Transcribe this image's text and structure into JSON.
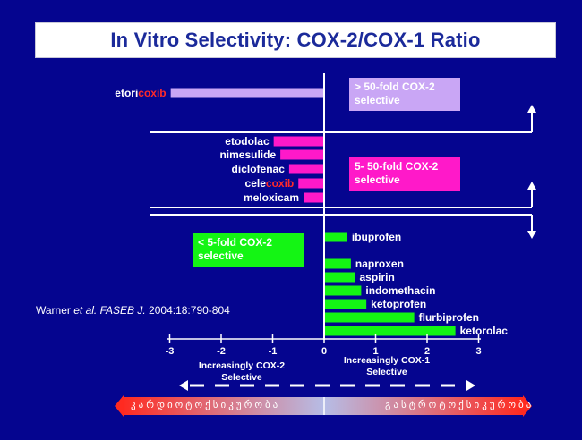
{
  "slide": {
    "title": "In Vitro Selectivity: COX-2/COX-1 Ratio",
    "citation": {
      "pre": "Warner ",
      "italic": "et al. FASEB J.",
      "post": " 2004:18:790-804"
    },
    "boxes": {
      "over50": {
        "line1": "> 50-fold COX-2",
        "line2": "selective",
        "color": "#c9a6f5"
      },
      "fold5to50": {
        "line1": "5- 50-fold COX-2",
        "line2": "selective",
        "color": "#ff19c9"
      },
      "under5": {
        "line1": "< 5-fold COX-2",
        "line2": "selective",
        "color": "#14f514"
      }
    },
    "axis_captions": {
      "left_line1": "Increasingly COX-2",
      "left_line2": "Selective",
      "right_line1": "Increasingly COX-1",
      "right_line2": "Selective"
    },
    "risk_bar": {
      "left": "კარდიოტოქსიკურობა",
      "right": "გასტროტოქსიკურობა"
    },
    "colors": {
      "background": "#05058f",
      "title": "#1b2a9a",
      "cox_highlight": "#ff2a2a",
      "arrow_red": "#ff2a20"
    }
  },
  "chart_data": {
    "type": "bar",
    "orientation": "horizontal",
    "xlim": [
      -3,
      3
    ],
    "xticks": [
      "-3",
      "-2",
      "-1",
      "0",
      "1",
      "2",
      "3"
    ],
    "series": [
      {
        "drug": "etoricoxib",
        "pre": "etori",
        "coxib": "coxib",
        "value": -2.98,
        "color": "#c9a6f5"
      },
      {
        "drug": "etodolac",
        "pre": "etodolac",
        "coxib": "",
        "value": -0.98,
        "color": "#ff19c9"
      },
      {
        "drug": "nimesulide",
        "pre": "nimesulide",
        "coxib": "",
        "value": -0.85,
        "color": "#ff19c9"
      },
      {
        "drug": "diclofenac",
        "pre": "diclofenac",
        "coxib": "",
        "value": -0.68,
        "color": "#ff19c9"
      },
      {
        "drug": "celecoxib",
        "pre": "cele",
        "coxib": "coxib",
        "value": -0.5,
        "color": "#ff19c9"
      },
      {
        "drug": "meloxicam",
        "pre": "meloxicam",
        "coxib": "",
        "value": -0.4,
        "color": "#ff19c9"
      },
      {
        "drug": "ibuprofen",
        "pre": "ibuprofen",
        "coxib": "",
        "value": 0.45,
        "color": "#14f514"
      },
      {
        "drug": "naproxen",
        "pre": "naproxen",
        "coxib": "",
        "value": 0.52,
        "color": "#14f514"
      },
      {
        "drug": "aspirin",
        "pre": "aspirin",
        "coxib": "",
        "value": 0.6,
        "color": "#14f514"
      },
      {
        "drug": "indomethacin",
        "pre": "indomethacin",
        "coxib": "",
        "value": 0.72,
        "color": "#14f514"
      },
      {
        "drug": "ketoprofen",
        "pre": "ketoprofen",
        "coxib": "",
        "value": 0.82,
        "color": "#14f514"
      },
      {
        "drug": "flurbiprofen",
        "pre": "flurbiprofen",
        "coxib": "",
        "value": 1.75,
        "color": "#14f514"
      },
      {
        "drug": "ketorolac",
        "pre": "ketorolac",
        "coxib": "",
        "value": 2.55,
        "color": "#14f514"
      }
    ]
  }
}
